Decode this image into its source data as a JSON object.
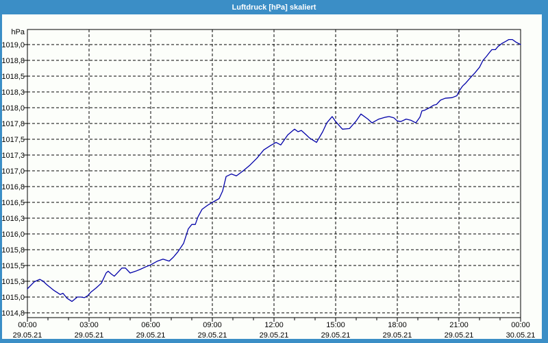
{
  "window": {
    "title": "Luftdruck [hPa] skaliert"
  },
  "colors": {
    "titlebar_bg": "#3b8ec6",
    "title_text": "#ffffff",
    "frame": "#3b8ec6",
    "canvas_bg": "#fcfefa",
    "grid": "#000000",
    "axis": "#000000",
    "label_text": "#000000",
    "line": "#0000a8"
  },
  "chart_data": {
    "type": "line",
    "title": "Luftdruck [hPa] skaliert",
    "xlabel": "",
    "ylabel": "hPa",
    "grid": "dashed",
    "legend": "none",
    "x_axis": {
      "range_hours": [
        0,
        24
      ],
      "minor_tick_hours": 1,
      "major_ticks": [
        {
          "hour": 0,
          "time": "00:00",
          "date": "29.05.21"
        },
        {
          "hour": 3,
          "time": "03:00",
          "date": "29.05.21"
        },
        {
          "hour": 6,
          "time": "06:00",
          "date": "29.05.21"
        },
        {
          "hour": 9,
          "time": "09:00",
          "date": "29.05.21"
        },
        {
          "hour": 12,
          "time": "12:00",
          "date": "29.05.21"
        },
        {
          "hour": 15,
          "time": "15:00",
          "date": "29.05.21"
        },
        {
          "hour": 18,
          "time": "18:00",
          "date": "29.05.21"
        },
        {
          "hour": 21,
          "time": "21:00",
          "date": "29.05.21"
        },
        {
          "hour": 24,
          "time": "00:00",
          "date": "30.05.21"
        }
      ]
    },
    "y_axis": {
      "unit": "hPa",
      "min": 1014.67,
      "max": 1019.24,
      "ticks": [
        {
          "value": 1019.0,
          "label": "1019,0"
        },
        {
          "value": 1018.75,
          "label": "1018,8"
        },
        {
          "value": 1018.5,
          "label": "1018,5"
        },
        {
          "value": 1018.25,
          "label": "1018,3"
        },
        {
          "value": 1018.0,
          "label": "1018,0"
        },
        {
          "value": 1017.75,
          "label": "1017,8"
        },
        {
          "value": 1017.5,
          "label": "1017,5"
        },
        {
          "value": 1017.25,
          "label": "1017,3"
        },
        {
          "value": 1017.0,
          "label": "1017,0"
        },
        {
          "value": 1016.75,
          "label": "1016,8"
        },
        {
          "value": 1016.5,
          "label": "1016,5"
        },
        {
          "value": 1016.25,
          "label": "1016,3"
        },
        {
          "value": 1016.0,
          "label": "1016,0"
        },
        {
          "value": 1015.75,
          "label": "1015,8"
        },
        {
          "value": 1015.5,
          "label": "1015,5"
        },
        {
          "value": 1015.25,
          "label": "1015,3"
        },
        {
          "value": 1015.0,
          "label": "1015,0"
        },
        {
          "value": 1014.75,
          "label": "1014,8"
        }
      ]
    },
    "series": [
      {
        "name": "Luftdruck",
        "color": "#0000a8",
        "points_hour_hpa": [
          [
            0.0,
            1015.13
          ],
          [
            0.33,
            1015.24
          ],
          [
            0.6,
            1015.28
          ],
          [
            0.77,
            1015.25
          ],
          [
            0.93,
            1015.2
          ],
          [
            1.27,
            1015.11
          ],
          [
            1.6,
            1015.04
          ],
          [
            1.73,
            1015.06
          ],
          [
            1.93,
            1014.98
          ],
          [
            2.17,
            1014.93
          ],
          [
            2.43,
            1015.0
          ],
          [
            2.6,
            1015.0
          ],
          [
            2.77,
            1014.99
          ],
          [
            2.93,
            1015.02
          ],
          [
            3.1,
            1015.08
          ],
          [
            3.33,
            1015.14
          ],
          [
            3.6,
            1015.22
          ],
          [
            3.83,
            1015.38
          ],
          [
            3.93,
            1015.41
          ],
          [
            4.1,
            1015.36
          ],
          [
            4.23,
            1015.33
          ],
          [
            4.43,
            1015.4
          ],
          [
            4.6,
            1015.46
          ],
          [
            4.77,
            1015.46
          ],
          [
            5.0,
            1015.38
          ],
          [
            5.27,
            1015.41
          ],
          [
            5.5,
            1015.44
          ],
          [
            5.77,
            1015.48
          ],
          [
            6.0,
            1015.51
          ],
          [
            6.33,
            1015.57
          ],
          [
            6.6,
            1015.6
          ],
          [
            6.9,
            1015.57
          ],
          [
            7.1,
            1015.63
          ],
          [
            7.33,
            1015.72
          ],
          [
            7.6,
            1015.85
          ],
          [
            7.83,
            1016.08
          ],
          [
            8.0,
            1016.15
          ],
          [
            8.17,
            1016.15
          ],
          [
            8.3,
            1016.27
          ],
          [
            8.5,
            1016.39
          ],
          [
            8.75,
            1016.45
          ],
          [
            9.0,
            1016.5
          ],
          [
            9.33,
            1016.56
          ],
          [
            9.5,
            1016.68
          ],
          [
            9.67,
            1016.91
          ],
          [
            9.93,
            1016.95
          ],
          [
            10.17,
            1016.92
          ],
          [
            10.5,
            1017.0
          ],
          [
            10.83,
            1017.09
          ],
          [
            11.17,
            1017.2
          ],
          [
            11.5,
            1017.33
          ],
          [
            11.83,
            1017.4
          ],
          [
            12.1,
            1017.45
          ],
          [
            12.33,
            1017.41
          ],
          [
            12.67,
            1017.57
          ],
          [
            13.0,
            1017.66
          ],
          [
            13.17,
            1017.62
          ],
          [
            13.33,
            1017.64
          ],
          [
            13.57,
            1017.57
          ],
          [
            13.73,
            1017.52
          ],
          [
            14.07,
            1017.45
          ],
          [
            14.37,
            1017.62
          ],
          [
            14.57,
            1017.76
          ],
          [
            14.83,
            1017.86
          ],
          [
            15.0,
            1017.78
          ],
          [
            15.33,
            1017.66
          ],
          [
            15.67,
            1017.67
          ],
          [
            16.0,
            1017.79
          ],
          [
            16.23,
            1017.9
          ],
          [
            16.57,
            1017.82
          ],
          [
            16.77,
            1017.76
          ],
          [
            17.1,
            1017.82
          ],
          [
            17.43,
            1017.85
          ],
          [
            17.6,
            1017.86
          ],
          [
            17.83,
            1017.84
          ],
          [
            18.0,
            1017.79
          ],
          [
            18.17,
            1017.78
          ],
          [
            18.43,
            1017.82
          ],
          [
            18.67,
            1017.8
          ],
          [
            18.9,
            1017.76
          ],
          [
            19.1,
            1017.85
          ],
          [
            19.2,
            1017.95
          ],
          [
            19.33,
            1017.96
          ],
          [
            19.57,
            1018.0
          ],
          [
            19.77,
            1018.04
          ],
          [
            19.9,
            1018.05
          ],
          [
            20.1,
            1018.12
          ],
          [
            20.33,
            1018.15
          ],
          [
            20.67,
            1018.16
          ],
          [
            20.9,
            1018.19
          ],
          [
            21.0,
            1018.26
          ],
          [
            21.17,
            1018.34
          ],
          [
            21.33,
            1018.39
          ],
          [
            21.57,
            1018.48
          ],
          [
            21.77,
            1018.55
          ],
          [
            22.0,
            1018.64
          ],
          [
            22.17,
            1018.75
          ],
          [
            22.33,
            1018.81
          ],
          [
            22.5,
            1018.88
          ],
          [
            22.6,
            1018.92
          ],
          [
            22.77,
            1018.92
          ],
          [
            22.9,
            1018.97
          ],
          [
            23.1,
            1019.02
          ],
          [
            23.27,
            1019.05
          ],
          [
            23.43,
            1019.08
          ],
          [
            23.6,
            1019.08
          ],
          [
            23.77,
            1019.04
          ],
          [
            24.0,
            1019.0
          ]
        ]
      }
    ]
  }
}
